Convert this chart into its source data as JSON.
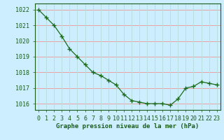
{
  "x": [
    0,
    1,
    2,
    3,
    4,
    5,
    6,
    7,
    8,
    9,
    10,
    11,
    12,
    13,
    14,
    15,
    16,
    17,
    18,
    19,
    20,
    21,
    22,
    23
  ],
  "y": [
    1022.0,
    1021.5,
    1021.0,
    1020.3,
    1019.5,
    1019.0,
    1018.5,
    1018.0,
    1017.8,
    1017.5,
    1017.2,
    1016.6,
    1016.2,
    1016.1,
    1016.0,
    1016.0,
    1016.0,
    1015.9,
    1016.3,
    1017.0,
    1017.1,
    1017.4,
    1017.3,
    1017.2
  ],
  "line_color": "#1a6b1a",
  "marker_color": "#1a6b1a",
  "bg_color": "#cceeff",
  "grid_h_color": "#e8a0a0",
  "grid_v_color": "#b8dede",
  "title": "Graphe pression niveau de la mer (hPa)",
  "title_color": "#1a5c1a",
  "tick_color": "#1a5c1a",
  "spine_color": "#1a5c1a",
  "ylim": [
    1015.6,
    1022.4
  ],
  "yticks": [
    1016,
    1017,
    1018,
    1019,
    1020,
    1021,
    1022
  ],
  "tick_fontsize": 6.0,
  "xlabel_fontsize": 6.5
}
